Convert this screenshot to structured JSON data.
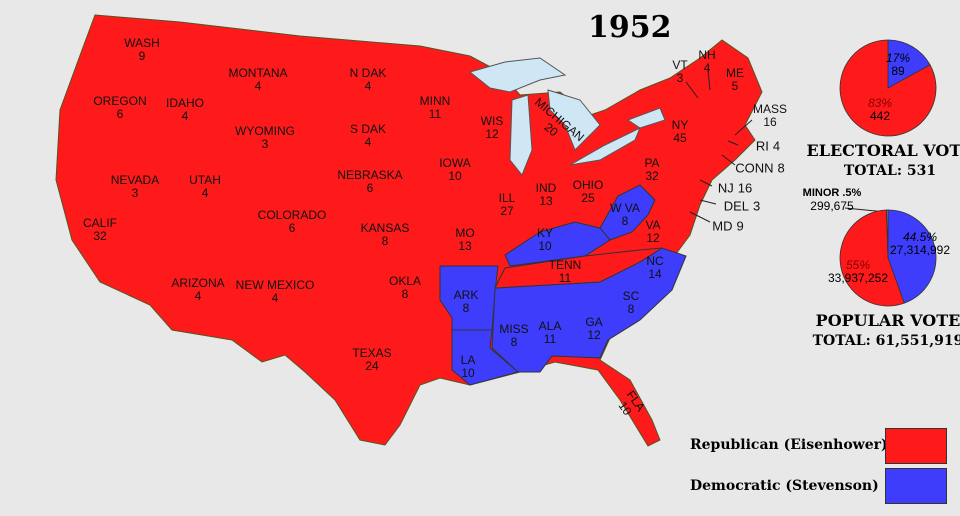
{
  "title": "1952",
  "colors": {
    "republican": "#fe1a1a",
    "democratic": "#3d3dfb",
    "lakes": "#cfe6f5",
    "background": "#e8e8e8"
  },
  "states": [
    {
      "name": "WASH",
      "ev": "9",
      "party": "R"
    },
    {
      "name": "OREGON",
      "ev": "6",
      "party": "R"
    },
    {
      "name": "CALIF",
      "ev": "32",
      "party": "R"
    },
    {
      "name": "NEVADA",
      "ev": "3",
      "party": "R"
    },
    {
      "name": "IDAHO",
      "ev": "4",
      "party": "R"
    },
    {
      "name": "MONTANA",
      "ev": "4",
      "party": "R"
    },
    {
      "name": "WYOMING",
      "ev": "3",
      "party": "R"
    },
    {
      "name": "UTAH",
      "ev": "4",
      "party": "R"
    },
    {
      "name": "COLORADO",
      "ev": "6",
      "party": "R"
    },
    {
      "name": "ARIZONA",
      "ev": "4",
      "party": "R"
    },
    {
      "name": "NEW MEXICO",
      "ev": "4",
      "party": "R"
    },
    {
      "name": "N DAK",
      "ev": "4",
      "party": "R"
    },
    {
      "name": "S DAK",
      "ev": "4",
      "party": "R"
    },
    {
      "name": "NEBRASKA",
      "ev": "6",
      "party": "R"
    },
    {
      "name": "KANSAS",
      "ev": "8",
      "party": "R"
    },
    {
      "name": "OKLA",
      "ev": "8",
      "party": "R"
    },
    {
      "name": "TEXAS",
      "ev": "24",
      "party": "R"
    },
    {
      "name": "MINN",
      "ev": "11",
      "party": "R"
    },
    {
      "name": "IOWA",
      "ev": "10",
      "party": "R"
    },
    {
      "name": "MO",
      "ev": "13",
      "party": "R"
    },
    {
      "name": "ARK",
      "ev": "8",
      "party": "D"
    },
    {
      "name": "LA",
      "ev": "10",
      "party": "D"
    },
    {
      "name": "WIS",
      "ev": "12",
      "party": "R"
    },
    {
      "name": "ILL",
      "ev": "27",
      "party": "R"
    },
    {
      "name": "MICHIGAN",
      "ev": "20",
      "party": "R"
    },
    {
      "name": "IND",
      "ev": "13",
      "party": "R"
    },
    {
      "name": "OHIO",
      "ev": "25",
      "party": "R"
    },
    {
      "name": "KY",
      "ev": "10",
      "party": "D"
    },
    {
      "name": "TENN",
      "ev": "11",
      "party": "R"
    },
    {
      "name": "MISS",
      "ev": "8",
      "party": "D"
    },
    {
      "name": "ALA",
      "ev": "11",
      "party": "D"
    },
    {
      "name": "GA",
      "ev": "12",
      "party": "D"
    },
    {
      "name": "SC",
      "ev": "8",
      "party": "D"
    },
    {
      "name": "NC",
      "ev": "14",
      "party": "D"
    },
    {
      "name": "VA",
      "ev": "12",
      "party": "R"
    },
    {
      "name": "W VA",
      "ev": "8",
      "party": "D"
    },
    {
      "name": "PA",
      "ev": "32",
      "party": "R"
    },
    {
      "name": "NY",
      "ev": "45",
      "party": "R"
    },
    {
      "name": "FLA",
      "ev": "10",
      "party": "R"
    },
    {
      "name": "VT",
      "ev": "3",
      "party": "R"
    },
    {
      "name": "NH",
      "ev": "4",
      "party": "R"
    },
    {
      "name": "ME",
      "ev": "5",
      "party": "R"
    },
    {
      "name": "MASS",
      "ev": "16",
      "party": "R"
    },
    {
      "name": "RI",
      "ev": "4",
      "party": "R"
    },
    {
      "name": "CONN",
      "ev": "8",
      "party": "R"
    },
    {
      "name": "NJ",
      "ev": "16",
      "party": "R"
    },
    {
      "name": "DEL",
      "ev": "3",
      "party": "R"
    },
    {
      "name": "MD",
      "ev": "9",
      "party": "R"
    }
  ],
  "electoral": {
    "dem_pct": "17%",
    "dem_votes": "89",
    "rep_pct": "83%",
    "rep_votes": "442",
    "dem_share": 17,
    "label": "ELECTORAL  VOTE",
    "total": "TOTAL:  531"
  },
  "popular": {
    "dem_pct": "44.5%",
    "dem_votes": "27,314,992",
    "rep_pct": "55%",
    "rep_votes": "33,937,252",
    "minor_label": "MINOR .5%",
    "minor_votes": "299,675",
    "dem_share": 44.5,
    "rep_share": 55,
    "minor_share": 0.5,
    "label": "POPULAR  VOTE",
    "total": "TOTAL:  61,551,919"
  },
  "legend": [
    {
      "label": "Republican (Eisenhower)",
      "color": "#fe1a1a"
    },
    {
      "label": "Democratic (Stevenson)",
      "color": "#3d3dfb"
    }
  ]
}
